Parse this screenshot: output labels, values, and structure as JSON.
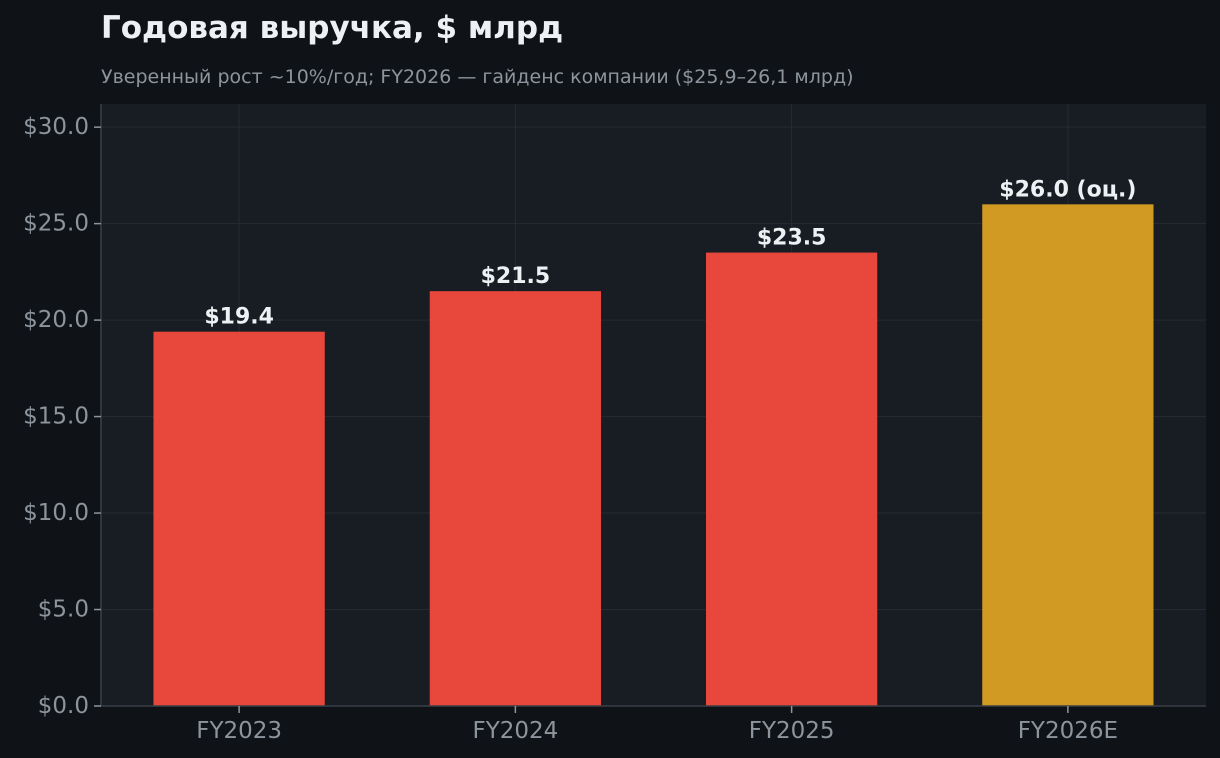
{
  "chart_data": {
    "type": "bar",
    "title": "Годовая выручка, $ млрд",
    "subtitle": "Уверенный рост ~10%/год; FY2026 — гайденс компании ($25,9–26,1 млрд)",
    "xlabel": "",
    "ylabel": "",
    "categories": [
      "FY2023",
      "FY2024",
      "FY2025",
      "FY2026E"
    ],
    "values": [
      19.4,
      21.5,
      23.5,
      26.0
    ],
    "value_labels": [
      "$19.4",
      "$21.5",
      "$23.5",
      "$26.0 (оц.)"
    ],
    "ylim": [
      0,
      31.2
    ],
    "yticks": [
      0,
      5,
      10,
      15,
      20,
      25,
      30
    ],
    "ytick_labels": [
      "$0.0",
      "$5.0",
      "$10.0",
      "$15.0",
      "$20.0",
      "$25.0",
      "$30.0"
    ],
    "grid": true,
    "legend": "none",
    "colors": {
      "actual": "#e8483b",
      "estimate": "#d19a22",
      "background": "#0f1317",
      "plot_background": "#181c23",
      "grid": "#262b33",
      "axis": "#3a3f47",
      "tick_text": "#8d949c",
      "label_text": "#eef1f4"
    },
    "bar_colors": [
      "#e8483b",
      "#e8483b",
      "#e8483b",
      "#d19a22"
    ]
  }
}
